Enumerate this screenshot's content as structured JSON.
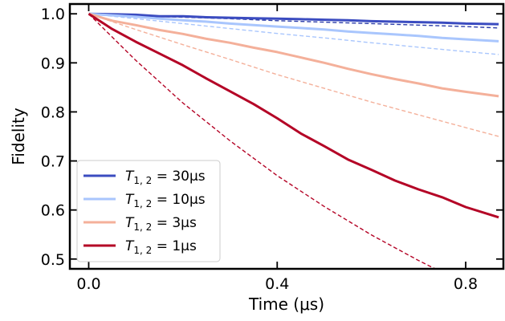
{
  "chart_data": {
    "type": "line",
    "xlabel": "Time (μs)",
    "ylabel": "Fidelity",
    "xlim": [
      -0.04,
      0.88
    ],
    "ylim": [
      0.48,
      1.02
    ],
    "xticks": [
      0.0,
      0.4,
      0.8
    ],
    "xtick_labels": [
      "0.0",
      "0.4",
      "0.8"
    ],
    "yticks": [
      0.5,
      0.6,
      0.7,
      0.8,
      0.9,
      1.0
    ],
    "ytick_labels": [
      "0.5",
      "0.6",
      "0.7",
      "0.8",
      "0.9",
      "1.0"
    ],
    "legend_position": "lower-left",
    "grid": false,
    "series": [
      {
        "name": "T_{1,2} = 30μs",
        "legend_main": "T",
        "legend_sub": "1, 2",
        "legend_rest": " = 30μs",
        "color": "#3b4cc0",
        "style": "solid",
        "x": [
          0.0,
          0.05,
          0.1,
          0.15,
          0.2,
          0.25,
          0.3,
          0.35,
          0.4,
          0.45,
          0.5,
          0.55,
          0.6,
          0.65,
          0.7,
          0.75,
          0.8,
          0.87
        ],
        "y": [
          1.0,
          0.999,
          0.998,
          0.995,
          0.995,
          0.993,
          0.992,
          0.991,
          0.99,
          0.989,
          0.988,
          0.987,
          0.985,
          0.984,
          0.983,
          0.982,
          0.98,
          0.979
        ]
      },
      {
        "name": "T_{1,2} = 10μs",
        "legend_main": "T",
        "legend_sub": "1, 2",
        "legend_rest": " = 10μs",
        "color": "#a9c6fd",
        "style": "solid",
        "x": [
          0.0,
          0.05,
          0.1,
          0.15,
          0.2,
          0.25,
          0.3,
          0.35,
          0.4,
          0.45,
          0.5,
          0.55,
          0.6,
          0.65,
          0.7,
          0.75,
          0.8,
          0.87
        ],
        "y": [
          1.0,
          0.997,
          0.994,
          0.99,
          0.987,
          0.984,
          0.98,
          0.977,
          0.974,
          0.971,
          0.968,
          0.964,
          0.961,
          0.958,
          0.955,
          0.951,
          0.948,
          0.944
        ]
      },
      {
        "name": "T_{1,2} = 3μs",
        "legend_main": "T",
        "legend_sub": "1, 2",
        "legend_rest": " = 3μs",
        "color": "#f4b09a",
        "style": "solid",
        "x": [
          0.0,
          0.05,
          0.1,
          0.15,
          0.2,
          0.25,
          0.3,
          0.35,
          0.4,
          0.45,
          0.5,
          0.55,
          0.6,
          0.65,
          0.7,
          0.75,
          0.8,
          0.87
        ],
        "y": [
          1.0,
          0.986,
          0.977,
          0.967,
          0.959,
          0.949,
          0.941,
          0.931,
          0.922,
          0.911,
          0.9,
          0.888,
          0.877,
          0.867,
          0.858,
          0.848,
          0.841,
          0.832
        ]
      },
      {
        "name": "T_{1,2} = 1μs",
        "legend_main": "T",
        "legend_sub": "1, 2",
        "legend_rest": " = 1μs",
        "color": "#b40426",
        "style": "solid",
        "x": [
          0.0,
          0.05,
          0.1,
          0.15,
          0.2,
          0.25,
          0.3,
          0.35,
          0.4,
          0.45,
          0.5,
          0.55,
          0.6,
          0.65,
          0.7,
          0.75,
          0.8,
          0.87
        ],
        "y": [
          1.0,
          0.969,
          0.943,
          0.919,
          0.895,
          0.868,
          0.842,
          0.816,
          0.787,
          0.756,
          0.73,
          0.703,
          0.682,
          0.66,
          0.642,
          0.626,
          0.606,
          0.585
        ]
      }
    ],
    "reference_curves": [
      {
        "color": "#2a3ba8",
        "style": "dashed",
        "x": [
          0.0,
          0.1,
          0.2,
          0.3,
          0.4,
          0.5,
          0.6,
          0.7,
          0.8,
          0.87
        ],
        "y": [
          1.0,
          0.996,
          0.993,
          0.99,
          0.986,
          0.983,
          0.98,
          0.977,
          0.974,
          0.971
        ]
      },
      {
        "color": "#a9c6fd",
        "style": "dashed",
        "x": [
          0.0,
          0.1,
          0.2,
          0.3,
          0.4,
          0.5,
          0.6,
          0.7,
          0.8,
          0.87
        ],
        "y": [
          1.0,
          0.99,
          0.98,
          0.97,
          0.96,
          0.951,
          0.941,
          0.932,
          0.923,
          0.917
        ]
      },
      {
        "color": "#f4b09a",
        "style": "dashed",
        "x": [
          0.0,
          0.1,
          0.2,
          0.3,
          0.4,
          0.5,
          0.6,
          0.7,
          0.8,
          0.87
        ],
        "y": [
          1.0,
          0.968,
          0.937,
          0.907,
          0.876,
          0.848,
          0.82,
          0.794,
          0.768,
          0.75
        ]
      },
      {
        "color": "#b40426",
        "style": "dashed",
        "x": [
          0.0,
          0.1,
          0.2,
          0.3,
          0.4,
          0.5,
          0.6,
          0.7,
          0.75
        ],
        "y": [
          1.0,
          0.905,
          0.818,
          0.741,
          0.67,
          0.607,
          0.549,
          0.497,
          0.473
        ]
      }
    ]
  }
}
